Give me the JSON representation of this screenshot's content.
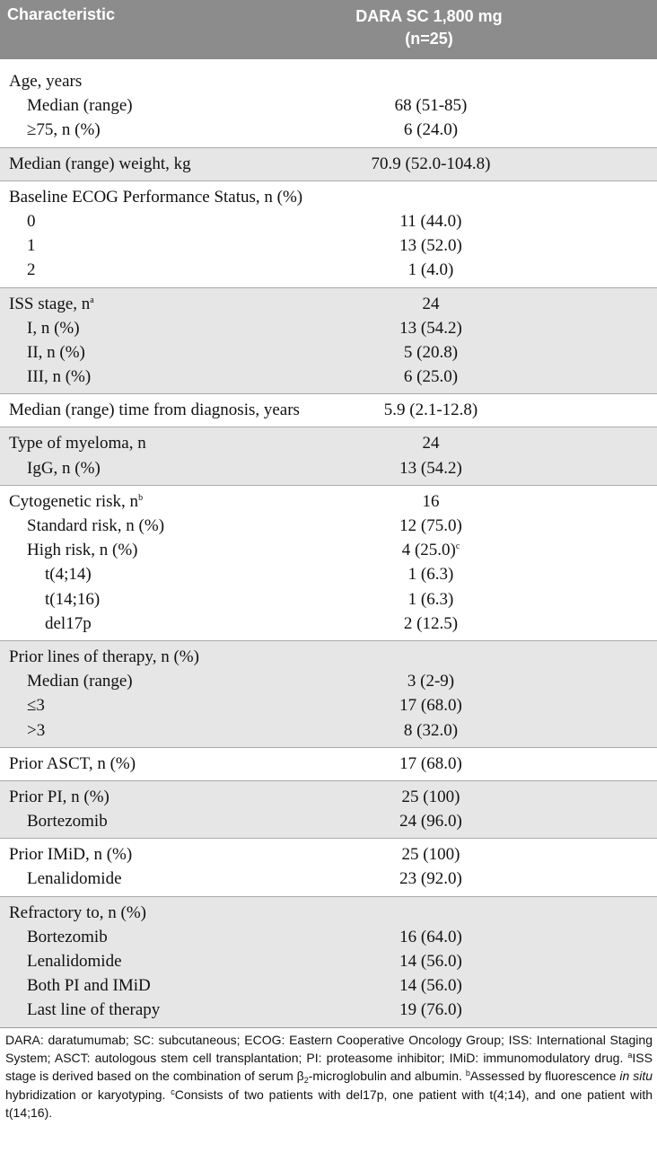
{
  "table": {
    "header": [
      "Characteristic",
      [
        "DARA SC 1,800 mg",
        "(n=25)"
      ]
    ],
    "groups": [
      {
        "label": "Age, years",
        "rows": [
          {
            "label": "Median (range)",
            "value": "68 (51-85)"
          },
          {
            "label": "≥75, n (%)",
            "value": "6 (24.0)"
          }
        ]
      },
      {
        "label": "Median (range) weight, kg",
        "value": "70.9 (52.0-104.8)"
      },
      {
        "label": "Baseline ECOG Performance Status, n (%)",
        "rows": [
          {
            "label": "0",
            "value": "11 (44.0)"
          },
          {
            "label": "1",
            "value": "13 (52.0)"
          },
          {
            "label": "2",
            "value": "1 (4.0)"
          }
        ]
      },
      {
        "label": "ISS stage, n",
        "label_sup": "a",
        "value": "24",
        "rows": [
          {
            "label": "I, n (%)",
            "value": "13 (54.2)"
          },
          {
            "label": "II, n (%)",
            "value": "5 (20.8)"
          },
          {
            "label": "III, n (%)",
            "value": "6 (25.0)"
          }
        ]
      },
      {
        "label": "Median (range) time from diagnosis, years",
        "value": "5.9 (2.1-12.8)"
      },
      {
        "label": "Type of myeloma, n",
        "value": "24",
        "rows": [
          {
            "label": "IgG, n (%)",
            "value": "13 (54.2)"
          }
        ]
      },
      {
        "label": "Cytogenetic risk, n",
        "label_sup": "b",
        "value": "16",
        "rows": [
          {
            "label": "Standard risk, n (%)",
            "value": "12 (75.0)"
          },
          {
            "label": "High risk, n (%)",
            "value": "4 (25.0)",
            "value_sup": "c",
            "rows": [
              {
                "label": "t(4;14)",
                "value": "1 (6.3)"
              },
              {
                "label": "t(14;16)",
                "value": "1 (6.3)"
              },
              {
                "label": "del17p",
                "value": "2 (12.5)"
              }
            ]
          }
        ]
      },
      {
        "label": "Prior lines of therapy, n (%)",
        "rows": [
          {
            "label": "Median (range)",
            "value": "3 (2-9)"
          },
          {
            "label": "≤3",
            "value": "17 (68.0)"
          },
          {
            "label": ">3",
            "value": "8 (32.0)"
          }
        ]
      },
      {
        "label": "Prior ASCT, n (%)",
        "value": "17 (68.0)"
      },
      {
        "label": "Prior PI, n (%)",
        "value": "25 (100)",
        "rows": [
          {
            "label": "Bortezomib",
            "value": "24 (96.0)"
          }
        ]
      },
      {
        "label": "Prior IMiD, n (%)",
        "value": "25 (100)",
        "rows": [
          {
            "label": "Lenalidomide",
            "value": "23 (92.0)"
          }
        ]
      },
      {
        "label": "Refractory to, n (%)",
        "rows": [
          {
            "label": "Bortezomib",
            "value": "16 (64.0)"
          },
          {
            "label": "Lenalidomide",
            "value": "14 (56.0)"
          },
          {
            "label": "Both PI and IMiD",
            "value": "14 (56.0)"
          },
          {
            "label": "Last line of therapy",
            "value": "19 (76.0)"
          }
        ]
      }
    ]
  },
  "footnote": [
    "DARA: daratumumab; SC: subcutaneous; ECOG: Eastern Cooperative Oncology Group; ISS: International Staging System; ASCT: autologous stem cell transplantation; PI: proteasome inhibitor; IMiD: immunomodulatory drug. ",
    "a",
    "ISS stage is derived based on the combination of serum β",
    "2",
    "-microglobulin and albumin. ",
    "b",
    "Assessed by fluorescence ",
    "in situ",
    " hybridization or karyotyping. ",
    "c",
    "Consists of two patients with del17p, one patient with t(4;14), and one patient with t(14;16)."
  ]
}
